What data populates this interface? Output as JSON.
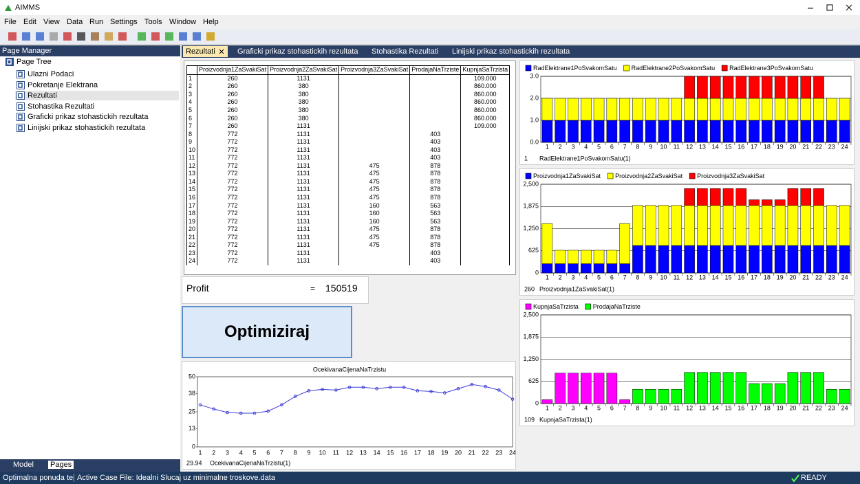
{
  "window": {
    "title": "AIMMS"
  },
  "menu": [
    "File",
    "Edit",
    "View",
    "Data",
    "Run",
    "Settings",
    "Tools",
    "Window",
    "Help"
  ],
  "page_manager": {
    "title": "Page Manager",
    "root": "Page Tree",
    "pages": [
      "Ulazni Podaci",
      "Pokretanje Elektrana",
      "Rezultati",
      "Stohastika Rezultati",
      "Graficki prikaz stohastickih rezultata",
      "Linijski prikaz stohastickih rezultata"
    ]
  },
  "bottom_tabs": [
    "Model",
    "Pages"
  ],
  "tabs": [
    "Rezultati",
    "Graficki prikaz stohastickih rezultata",
    "Stohastika Rezultati",
    "Linijski prikaz stohastickih rezultata"
  ],
  "table": {
    "columns": [
      "Proizvodnja1ZaSvakiSat",
      "Proizvodnja2ZaSvakiSat",
      "Proizvodnja3ZaSvakiSat",
      "ProdajaNaTrziste",
      "KupnjaSaTrzista"
    ],
    "rows": [
      [
        "1",
        "260",
        "1131",
        null,
        null,
        "109.000"
      ],
      [
        "2",
        "260",
        "380",
        null,
        null,
        "860.000"
      ],
      [
        "3",
        "260",
        "380",
        null,
        null,
        "860.000"
      ],
      [
        "4",
        "260",
        "380",
        null,
        null,
        "860.000"
      ],
      [
        "5",
        "260",
        "380",
        null,
        null,
        "860.000"
      ],
      [
        "6",
        "260",
        "380",
        null,
        null,
        "860.000"
      ],
      [
        "7",
        "260",
        "1131",
        null,
        null,
        "109.000"
      ],
      [
        "8",
        "772",
        "1131",
        null,
        "403",
        null
      ],
      [
        "9",
        "772",
        "1131",
        null,
        "403",
        null
      ],
      [
        "10",
        "772",
        "1131",
        null,
        "403",
        null
      ],
      [
        "11",
        "772",
        "1131",
        null,
        "403",
        null
      ],
      [
        "12",
        "772",
        "1131",
        "475",
        "878",
        null
      ],
      [
        "13",
        "772",
        "1131",
        "475",
        "878",
        null
      ],
      [
        "14",
        "772",
        "1131",
        "475",
        "878",
        null
      ],
      [
        "15",
        "772",
        "1131",
        "475",
        "878",
        null
      ],
      [
        "16",
        "772",
        "1131",
        "475",
        "878",
        null
      ],
      [
        "17",
        "772",
        "1131",
        "160",
        "563",
        null
      ],
      [
        "18",
        "772",
        "1131",
        "160",
        "563",
        null
      ],
      [
        "19",
        "772",
        "1131",
        "160",
        "563",
        null
      ],
      [
        "20",
        "772",
        "1131",
        "475",
        "878",
        null
      ],
      [
        "21",
        "772",
        "1131",
        "475",
        "878",
        null
      ],
      [
        "22",
        "772",
        "1131",
        "475",
        "878",
        null
      ],
      [
        "23",
        "772",
        "1131",
        null,
        "403",
        null
      ],
      [
        "24",
        "772",
        "1131",
        null,
        "403",
        null
      ]
    ]
  },
  "profit": {
    "label": "Profit",
    "equals": "=",
    "value": "150519"
  },
  "button": "Optimiziraj",
  "charts": [
    {
      "type": "bar",
      "stacked": true,
      "grid": true,
      "categories": [
        1,
        2,
        3,
        4,
        5,
        6,
        7,
        8,
        9,
        10,
        11,
        12,
        13,
        14,
        15,
        16,
        17,
        18,
        19,
        20,
        21,
        22,
        23,
        24
      ],
      "ylim": [
        0,
        3
      ],
      "yticks": [
        {
          "value": 0,
          "label": "0.0"
        },
        {
          "value": 1,
          "label": "1.0"
        },
        {
          "value": 2,
          "label": "2.0"
        },
        {
          "value": 3,
          "label": "3.0"
        }
      ],
      "series": [
        {
          "name": "RadElektrane1PoSvakomSatu",
          "color": "#0000ff",
          "values": [
            1,
            1,
            1,
            1,
            1,
            1,
            1,
            1,
            1,
            1,
            1,
            1,
            1,
            1,
            1,
            1,
            1,
            1,
            1,
            1,
            1,
            1,
            1,
            1
          ]
        },
        {
          "name": "RadElektrane2PoSvakomSatu",
          "color": "#ffff00",
          "values": [
            1,
            1,
            1,
            1,
            1,
            1,
            1,
            1,
            1,
            1,
            1,
            1,
            1,
            1,
            1,
            1,
            1,
            1,
            1,
            1,
            1,
            1,
            1,
            1
          ]
        },
        {
          "name": "RadElektrane3PoSvakomSatu",
          "color": "#ff0000",
          "values": [
            null,
            null,
            null,
            null,
            null,
            null,
            null,
            null,
            null,
            null,
            null,
            1,
            1,
            1,
            1,
            1,
            1,
            1,
            1,
            1,
            1,
            1,
            null,
            null
          ]
        }
      ],
      "footer": {
        "value": 1,
        "label": "RadElektrane1PoSvakomSatu(1)"
      }
    },
    {
      "type": "bar",
      "stacked": true,
      "grid": true,
      "categories": [
        1,
        2,
        3,
        4,
        5,
        6,
        7,
        8,
        9,
        10,
        11,
        12,
        13,
        14,
        15,
        16,
        17,
        18,
        19,
        20,
        21,
        22,
        23,
        24
      ],
      "ylim": [
        0,
        2500
      ],
      "yticks": [
        0,
        625,
        {
          "value": 1250,
          "label": "1,250"
        },
        {
          "value": 1875,
          "label": "1,875"
        },
        {
          "value": 2500,
          "label": "2,500"
        }
      ],
      "series": [
        {
          "name": "Proizvodnja1ZaSvakiSat",
          "color": "#0000ff",
          "values": [
            260,
            260,
            260,
            260,
            260,
            260,
            260,
            772,
            772,
            772,
            772,
            772,
            772,
            772,
            772,
            772,
            772,
            772,
            772,
            772,
            772,
            772,
            772,
            772
          ]
        },
        {
          "name": "Proizvodnja2ZaSvakiSat",
          "color": "#ffff00",
          "values": [
            1131,
            380,
            380,
            380,
            380,
            380,
            1131,
            1131,
            1131,
            1131,
            1131,
            1131,
            1131,
            1131,
            1131,
            1131,
            1131,
            1131,
            1131,
            1131,
            1131,
            1131,
            1131,
            1131
          ]
        },
        {
          "name": "Proizvodnja3ZaSvakiSat",
          "color": "#ff0000",
          "values": [
            null,
            null,
            null,
            null,
            null,
            null,
            null,
            null,
            null,
            null,
            null,
            475,
            475,
            475,
            475,
            475,
            160,
            160,
            160,
            475,
            475,
            475,
            null,
            null
          ]
        }
      ],
      "footer": {
        "value": 260,
        "label": "Proizvodnja1ZaSvakiSat(1)"
      }
    },
    {
      "type": "bar",
      "stacked": false,
      "grid": true,
      "categories": [
        1,
        2,
        3,
        4,
        5,
        6,
        7,
        8,
        9,
        10,
        11,
        12,
        13,
        14,
        15,
        16,
        17,
        18,
        19,
        20,
        21,
        22,
        23,
        24
      ],
      "ylim": [
        0,
        2500
      ],
      "yticks": [
        0,
        625,
        {
          "value": 1250,
          "label": "1,250"
        },
        {
          "value": 1875,
          "label": "1,875"
        },
        {
          "value": 2500,
          "label": "2,500"
        }
      ],
      "series": [
        {
          "name": "KupnjaSaTrzista",
          "color": "#ff00ff",
          "values": [
            109,
            860,
            860,
            860,
            860,
            860,
            109,
            null,
            null,
            null,
            null,
            null,
            null,
            null,
            null,
            null,
            null,
            null,
            null,
            null,
            null,
            null,
            null,
            null
          ]
        },
        {
          "name": "ProdajaNaTrziste",
          "color": "#00ff00",
          "values": [
            null,
            null,
            null,
            null,
            null,
            null,
            null,
            403,
            403,
            403,
            403,
            878,
            878,
            878,
            878,
            878,
            563,
            563,
            563,
            878,
            878,
            878,
            403,
            403
          ]
        }
      ],
      "footer": {
        "value": 109,
        "label": "KupnjaSaTrzista(1)"
      }
    },
    {
      "type": "line",
      "grid": false,
      "title": "OcekivanaCijenaNaTrzistu",
      "categories": [
        1,
        2,
        3,
        4,
        5,
        6,
        7,
        8,
        9,
        10,
        11,
        12,
        13,
        14,
        15,
        16,
        17,
        18,
        19,
        20,
        21,
        22,
        23,
        24
      ],
      "ylim": [
        0,
        50
      ],
      "yticks": [
        0,
        13,
        25,
        38,
        50
      ],
      "series": [
        {
          "name": "OcekivanaCijenaNaTrzistu",
          "color": "#3b3bd8",
          "values": [
            29.94,
            27,
            24.5,
            24,
            24,
            25.5,
            30,
            36,
            40,
            41,
            40.5,
            42.5,
            42.5,
            41.5,
            42.5,
            42.5,
            40,
            39.5,
            38.5,
            41.5,
            44.5,
            43,
            40.5,
            34
          ]
        }
      ],
      "footer": {
        "value": 29.94,
        "label": "OcekivanaCijenaNaTrzistu(1)"
      }
    }
  ],
  "status": {
    "left": "Optimalna ponuda ter",
    "case": "Active Case File: Idealni Slucaj uz minimalne troskove.data",
    "ready": "READY"
  }
}
